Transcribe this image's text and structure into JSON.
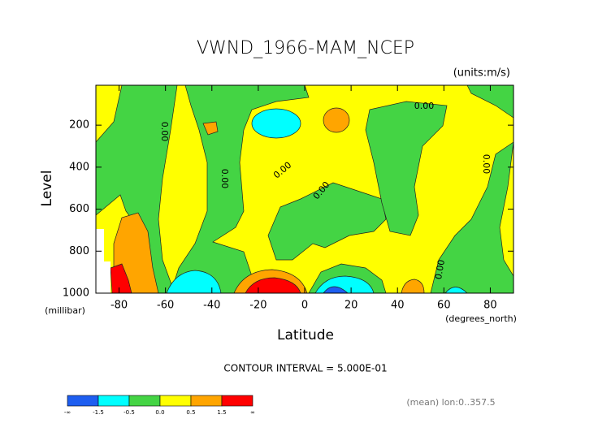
{
  "chart_data": {
    "type": "contour",
    "title": "VWND_1966-MAM_NCEP",
    "subtitle": "(units:m/s)",
    "y_label": "Level",
    "y_units": "(millibar)",
    "x_label": "Latitude",
    "x_units": "(degrees_north)",
    "footer": "CONTOUR INTERVAL = 5.000E-01",
    "note": "(mean) lon:0..357.5",
    "xlim": [
      -90,
      90
    ],
    "xticks": [
      -80,
      -60,
      -40,
      -20,
      0,
      20,
      40,
      60,
      80
    ],
    "ylim": [
      1000,
      10
    ],
    "yticks": [
      200,
      400,
      600,
      800,
      1000
    ],
    "contour_labels": [
      "0.00",
      "0.00",
      "0.00",
      "0.00",
      "0.00",
      "0.00",
      "0.00"
    ],
    "colorbar": {
      "colors": [
        "#1e5ef0",
        "#00ffff",
        "#44d444",
        "#ffff00",
        "#ffa500",
        "#ff0000"
      ],
      "labels": [
        "-∞",
        "-1.5",
        "-0.5",
        "0.0",
        "0.5",
        "1.5",
        "∞"
      ]
    }
  }
}
